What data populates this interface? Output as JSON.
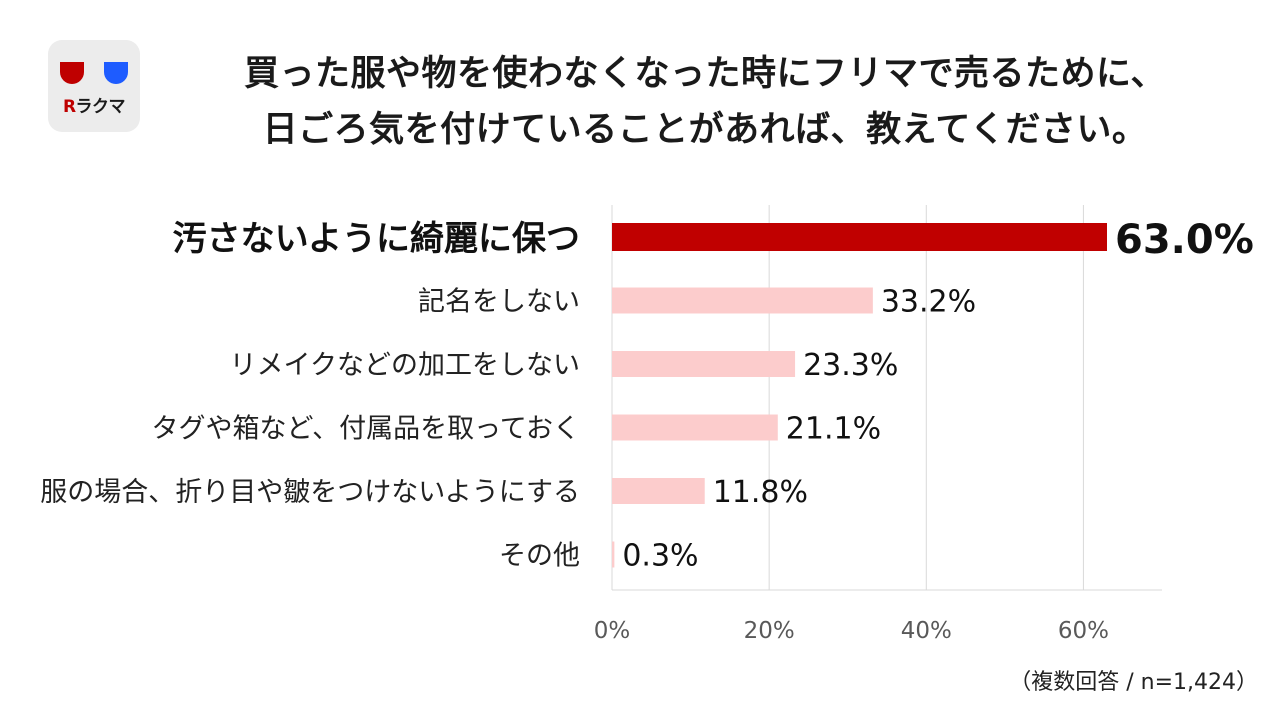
{
  "logo": {
    "icon": "rakuma-logo",
    "text_r": "R",
    "text_rest": "ラクマ",
    "brand_color": "#bf0000",
    "accent_blue": "#1e5cff"
  },
  "title_lines": [
    "買った服や物を使わなくなった時にフリマで売るために、",
    "日ごろ気を付けていることがあれば、教えてください。"
  ],
  "note": "（複数回答 / n=1,424）",
  "chart_data": {
    "type": "bar",
    "orientation": "horizontal",
    "categories": [
      "汚さないように綺麗に保つ",
      "記名をしない",
      "リメイクなどの加工をしない",
      "タグや箱など、付属品を取っておく",
      "服の場合、折り目や皺をつけないようにする",
      "その他"
    ],
    "values": [
      63.0,
      33.2,
      23.3,
      21.1,
      11.8,
      0.3
    ],
    "value_labels": [
      "63.0%",
      "33.2%",
      "23.3%",
      "21.1%",
      "11.8%",
      "0.3%"
    ],
    "highlight_index": 0,
    "highlight_color": "#c00000",
    "bar_color": "#fccccc",
    "x_ticks": [
      0,
      20,
      40,
      60
    ],
    "x_tick_labels": [
      "0%",
      "20%",
      "40%",
      "60%"
    ],
    "xlim": [
      0,
      70
    ],
    "grid": true
  }
}
